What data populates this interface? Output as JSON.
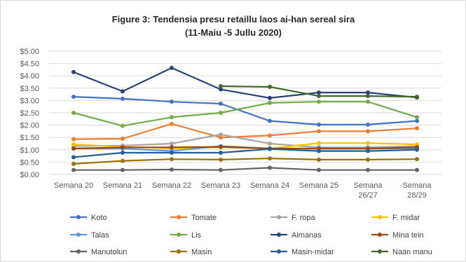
{
  "chart_data": {
    "type": "line",
    "title": "Figure 3: Tendensia presu retaillu laos ai-han sereal sira",
    "subtitle": "(11-Maiu -5 Jullu 2020)",
    "xlabel": "",
    "ylabel": "",
    "ylim": [
      0,
      5
    ],
    "yticks": [
      "$0.00",
      "$0.50",
      "$1.00",
      "$1.50",
      "$2.00",
      "$2.50",
      "$3.00",
      "$3.50",
      "$4.00",
      "$4.50",
      "$5.00"
    ],
    "grid": true,
    "legend_position": "bottom",
    "categories": [
      [
        "Semana 20"
      ],
      [
        "Semana 21"
      ],
      [
        "Semana 22"
      ],
      [
        "Semana 23"
      ],
      [
        "Semana 24"
      ],
      [
        "Semana 25"
      ],
      [
        "Semana",
        "26/27"
      ],
      [
        "Semana",
        "28/29"
      ]
    ],
    "series": [
      {
        "name": "Koto",
        "color": "#4472C4",
        "values": [
          3.15,
          3.07,
          2.95,
          2.87,
          2.17,
          2.02,
          2.02,
          2.17
        ]
      },
      {
        "name": "Tomate",
        "color": "#ED7D31",
        "values": [
          1.43,
          1.45,
          2.05,
          1.5,
          1.58,
          1.75,
          1.75,
          1.87
        ]
      },
      {
        "name": "F. ropa",
        "color": "#A5A5A5",
        "values": [
          1.15,
          1.17,
          1.25,
          1.62,
          1.25,
          1.1,
          1.1,
          1.15
        ]
      },
      {
        "name": "F. midar",
        "color": "#FFC000",
        "values": [
          1.22,
          1.12,
          1.05,
          1.1,
          1.05,
          1.27,
          1.27,
          1.22
        ]
      },
      {
        "name": "Talas",
        "color": "#5B9BD5",
        "values": [
          1.05,
          1.05,
          0.95,
          1.15,
          1.05,
          1.05,
          1.05,
          1.05
        ]
      },
      {
        "name": "Lis",
        "color": "#70AD47",
        "values": [
          2.5,
          1.97,
          2.32,
          2.5,
          2.9,
          2.95,
          2.95,
          2.32
        ]
      },
      {
        "name": "Aimanas",
        "color": "#264478",
        "values": [
          4.15,
          3.37,
          4.32,
          3.45,
          3.1,
          3.32,
          3.32,
          3.12
        ]
      },
      {
        "name": "Mina tein",
        "color": "#9E480E",
        "values": [
          1.05,
          1.1,
          1.1,
          1.12,
          1.05,
          1.05,
          1.05,
          1.1
        ]
      },
      {
        "name": "Manutolun",
        "color": "#636363",
        "values": [
          0.18,
          0.18,
          0.2,
          0.18,
          0.27,
          0.18,
          0.18,
          0.18
        ]
      },
      {
        "name": "Masin",
        "color": "#997300",
        "values": [
          0.43,
          0.55,
          0.62,
          0.6,
          0.65,
          0.6,
          0.6,
          0.62
        ]
      },
      {
        "name": "Masin-midar",
        "color": "#255E91",
        "values": [
          0.7,
          0.88,
          0.88,
          0.88,
          1.03,
          0.95,
          0.95,
          1.0
        ]
      },
      {
        "name": "Naan manu",
        "color": "#43682B",
        "values": [
          null,
          null,
          null,
          3.58,
          3.55,
          3.18,
          3.18,
          3.15
        ]
      }
    ]
  }
}
